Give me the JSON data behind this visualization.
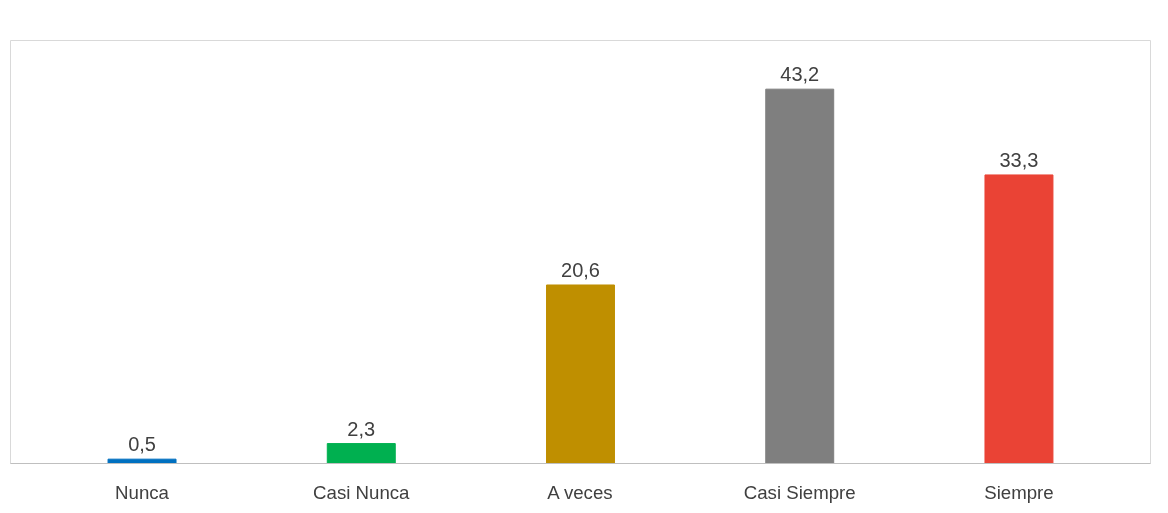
{
  "chart_data": {
    "type": "bar",
    "categories": [
      "Nunca",
      "Casi Nunca",
      "A veces",
      "Casi Siempre",
      "Siempre"
    ],
    "values": [
      0.5,
      2.3,
      20.6,
      43.2,
      33.3
    ],
    "colors": [
      "#0070c0",
      "#00b050",
      "#bf8f00",
      "#7f7f7f",
      "#ea4335"
    ],
    "value_labels": [
      "0,5",
      "2,3",
      "20,6",
      "43,2",
      "33,3"
    ],
    "tick_labels": "x"
  }
}
